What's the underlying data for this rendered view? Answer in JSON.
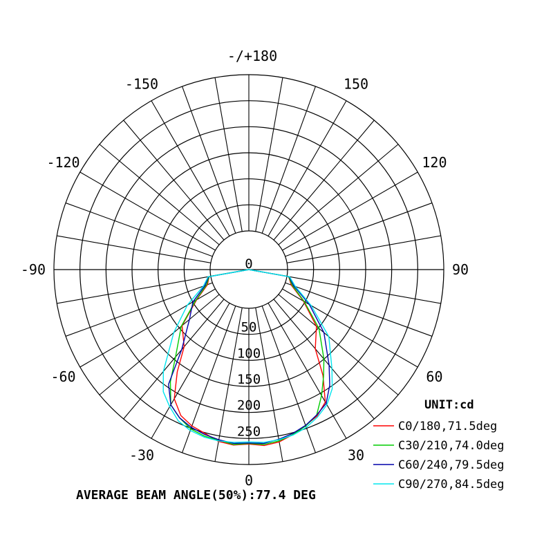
{
  "chart_data": {
    "type": "polar",
    "unit_label": "UNIT:cd",
    "angle_labels": [
      {
        "angle": 180,
        "text": "-/+180"
      },
      {
        "angle": -150,
        "text": "-150"
      },
      {
        "angle": 150,
        "text": "150"
      },
      {
        "angle": -120,
        "text": "-120"
      },
      {
        "angle": 120,
        "text": "120"
      },
      {
        "angle": -90,
        "text": "-90"
      },
      {
        "angle": 90,
        "text": "90"
      },
      {
        "angle": -60,
        "text": "-60"
      },
      {
        "angle": 60,
        "text": "60"
      },
      {
        "angle": -30,
        "text": "-30"
      },
      {
        "angle": 30,
        "text": "30"
      },
      {
        "angle": 0,
        "text": "0"
      }
    ],
    "radial_ticks": [
      0,
      50,
      100,
      150,
      200,
      250
    ],
    "rmax": 290,
    "r_hole": 50,
    "angular_grid_step_deg": 10,
    "series": [
      {
        "name": "C0/180,71.5deg",
        "color": "#ff0000",
        "angles": [
          -90,
          -80,
          -70,
          -60,
          -50,
          -40,
          -35,
          -30,
          -25,
          -20,
          -15,
          -10,
          -5,
          0,
          5,
          10,
          15,
          20,
          25,
          30,
          35,
          40,
          50,
          60,
          70,
          80,
          90
        ],
        "values": [
          0,
          3,
          10,
          40,
          90,
          115,
          160,
          205,
          227,
          237,
          243,
          252,
          255,
          252,
          256,
          253,
          245,
          236,
          228,
          212,
          168,
          120,
          92,
          45,
          12,
          3,
          0
        ]
      },
      {
        "name": "C30/210,74.0deg",
        "color": "#00cc00",
        "angles": [
          -90,
          -80,
          -70,
          -60,
          -50,
          -40,
          -35,
          -30,
          -25,
          -20,
          -15,
          -10,
          -5,
          0,
          5,
          10,
          15,
          20,
          25,
          30,
          35,
          40,
          50,
          60,
          70,
          80,
          90
        ],
        "values": [
          0,
          3,
          12,
          42,
          92,
          140,
          182,
          218,
          232,
          243,
          248,
          250,
          254,
          251,
          254,
          251,
          245,
          237,
          226,
          198,
          170,
          145,
          98,
          47,
          14,
          3,
          0
        ]
      },
      {
        "name": "C60/240,79.5deg",
        "color": "#0000aa",
        "angles": [
          -90,
          -80,
          -70,
          -60,
          -50,
          -40,
          -35,
          -30,
          -25,
          -20,
          -15,
          -10,
          -5,
          0,
          5,
          10,
          15,
          20,
          25,
          30,
          35,
          40,
          50,
          60,
          70,
          80,
          90
        ],
        "values": [
          0,
          4,
          15,
          48,
          72,
          122,
          188,
          218,
          232,
          240,
          245,
          249,
          252,
          250,
          252,
          248,
          243,
          236,
          226,
          215,
          190,
          160,
          110,
          58,
          17,
          4,
          0
        ]
      },
      {
        "name": "C90/270,84.5deg",
        "color": "#00e5ee",
        "angles": [
          -90,
          -80,
          -70,
          -60,
          -50,
          -40,
          -35,
          -30,
          -25,
          -20,
          -15,
          -10,
          -5,
          0,
          5,
          10,
          15,
          20,
          25,
          30,
          35,
          40,
          50,
          60,
          70,
          80,
          90
        ],
        "values": [
          0,
          5,
          18,
          60,
          110,
          175,
          205,
          222,
          238,
          246,
          250,
          251,
          250,
          248,
          250,
          249,
          246,
          240,
          230,
          218,
          198,
          168,
          122,
          62,
          20,
          5,
          0
        ]
      }
    ],
    "footer": "AVERAGE BEAM ANGLE(50%):77.4 DEG"
  }
}
